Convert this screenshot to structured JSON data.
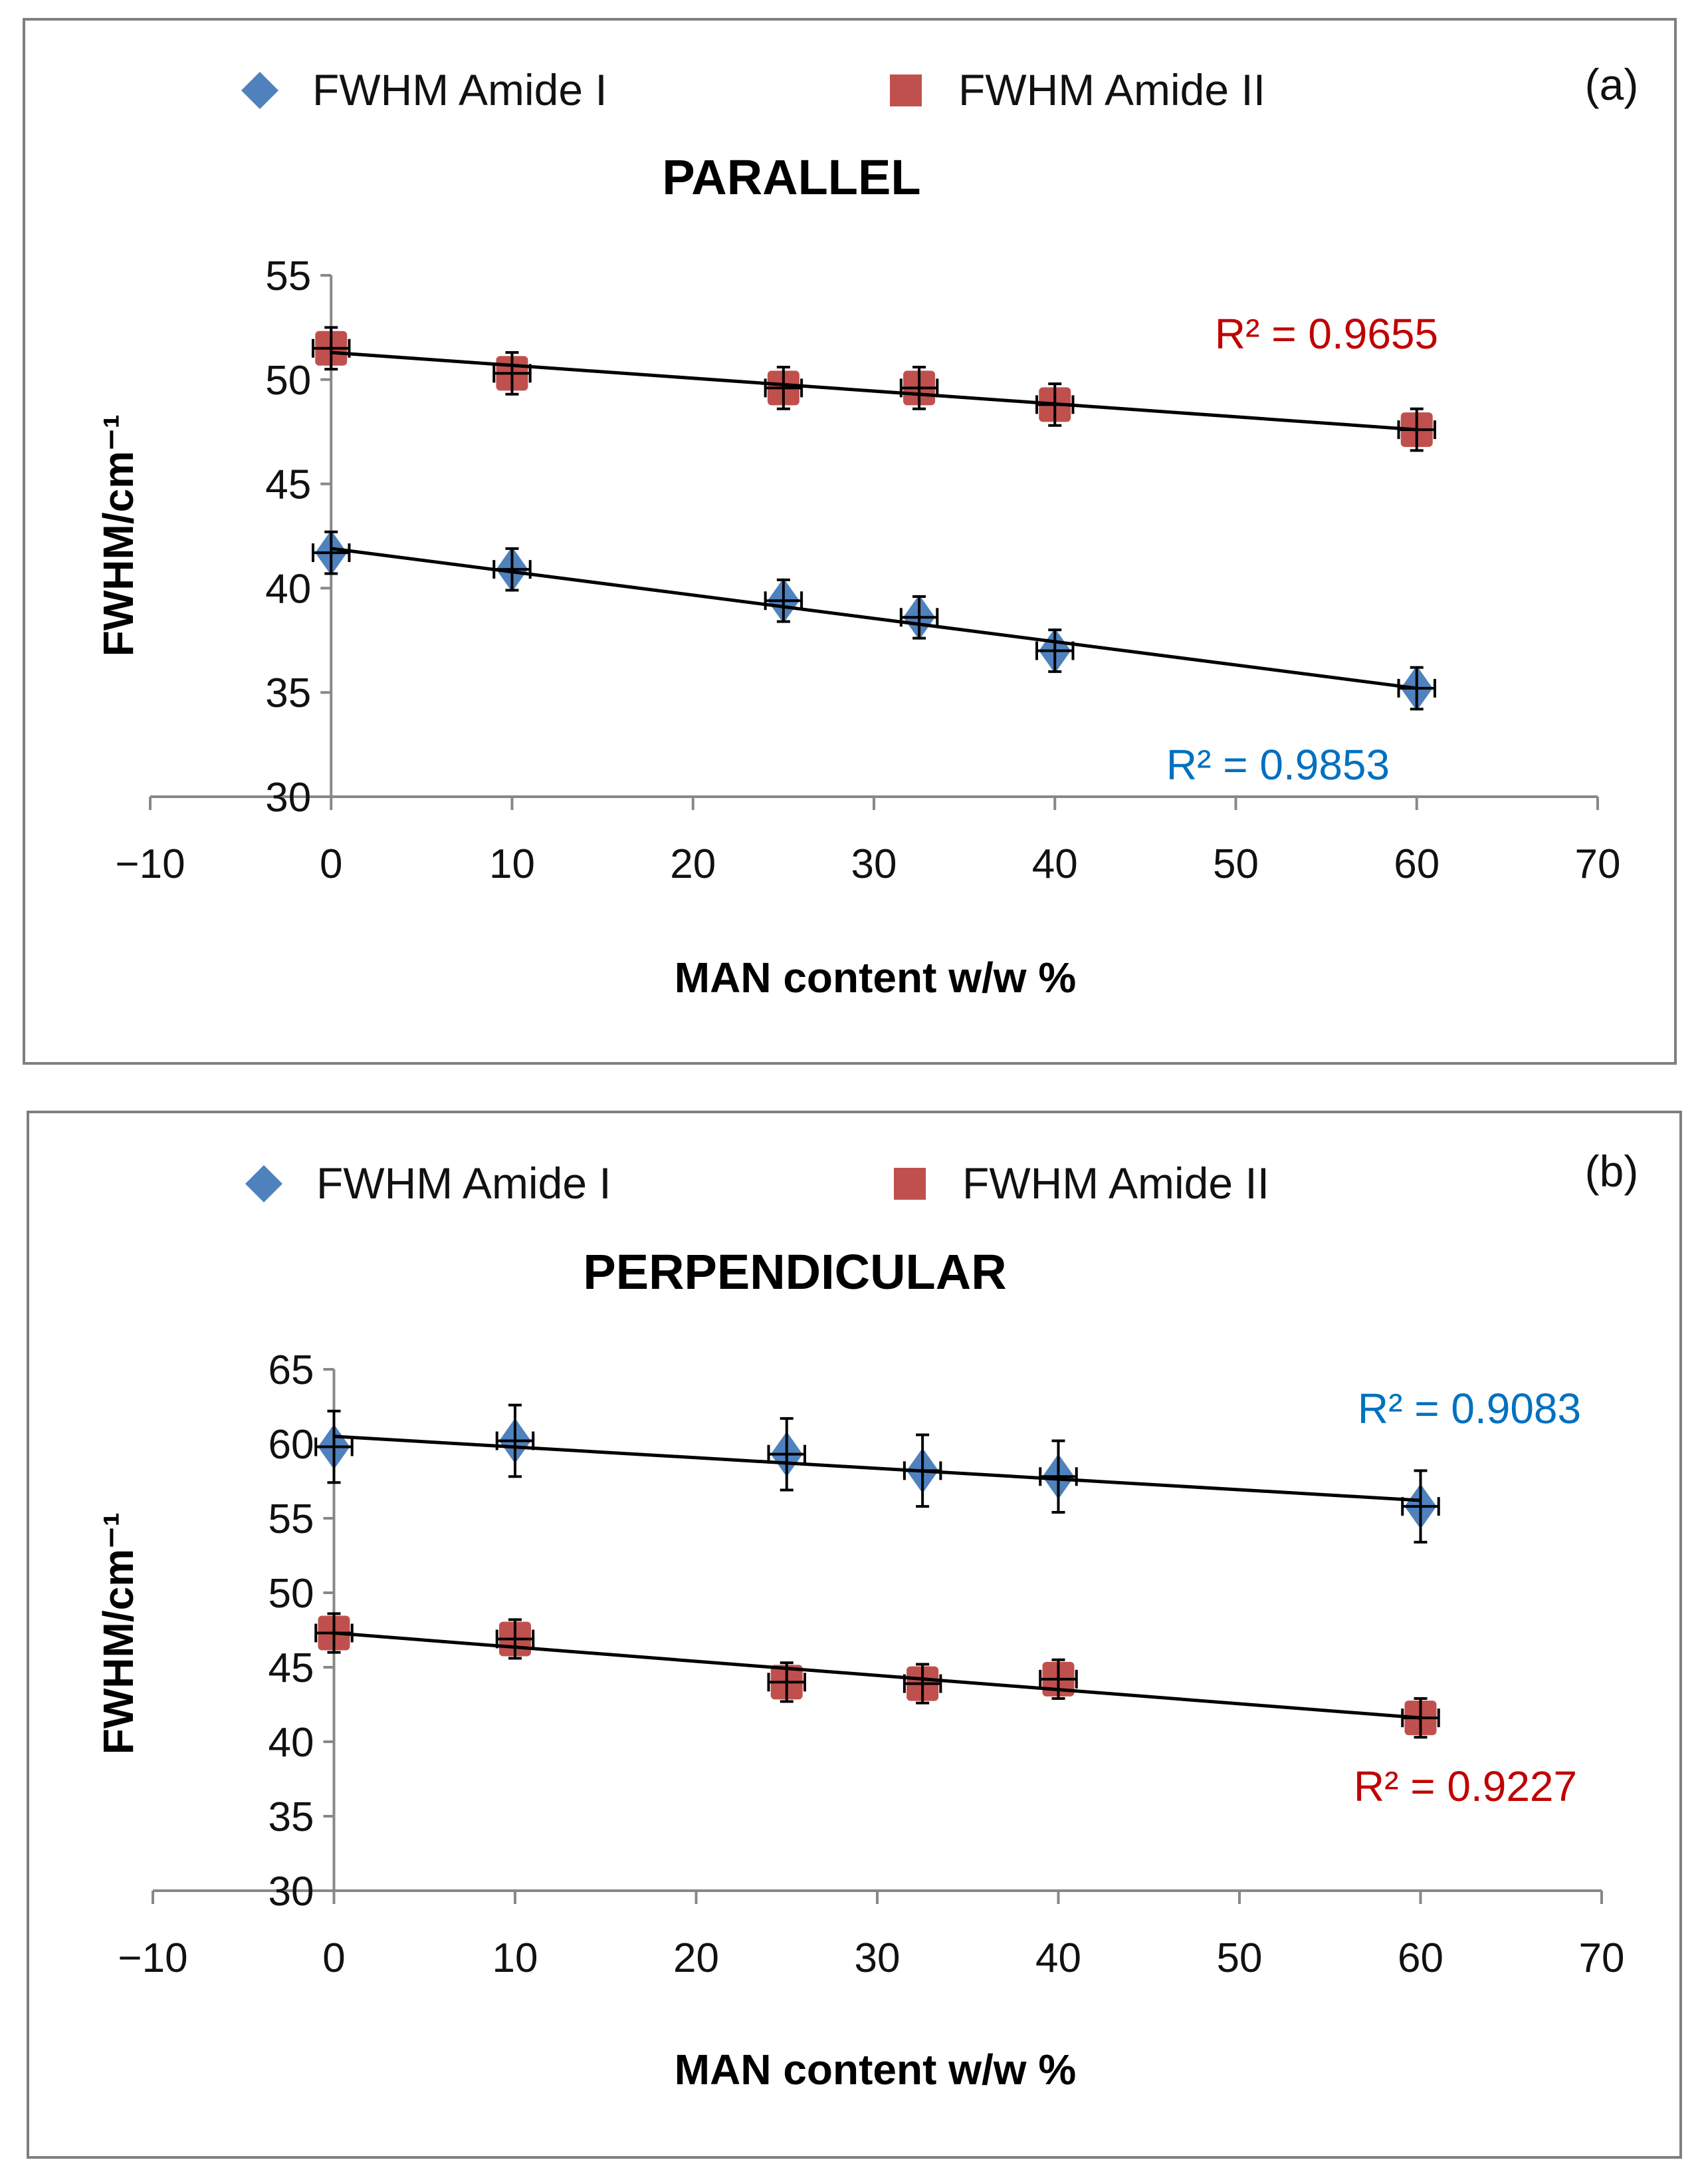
{
  "colors": {
    "amide1": "#4f81bd",
    "amide2": "#c0504d",
    "r2_blue": "#0070c0",
    "r2_red": "#c00000"
  },
  "chart_data": [
    {
      "type": "scatter",
      "panel": "(a)",
      "title": "PARALLEL",
      "xlabel": "MAN content w/w %",
      "ylabel": "FWHM/cm⁻¹",
      "xlim": [
        -10,
        70
      ],
      "ylim": [
        30,
        55
      ],
      "xticks": [
        -10,
        0,
        10,
        20,
        30,
        40,
        50,
        60,
        70
      ],
      "yticks": [
        30,
        35,
        40,
        45,
        50,
        55
      ],
      "legend": [
        "FWHM Amide I",
        "FWHM Amide II"
      ],
      "series": [
        {
          "name": "FWHM Amide I",
          "marker": "diamond",
          "x": [
            0,
            10,
            25,
            32.5,
            40,
            60
          ],
          "y": [
            41.7,
            40.9,
            39.4,
            38.6,
            37.0,
            35.2
          ],
          "yerr": 1.0,
          "xerr": 1.0,
          "trend": [
            41.9,
            35.2
          ],
          "r2": "R² = 0.9853"
        },
        {
          "name": "FWHM Amide II",
          "marker": "square",
          "x": [
            0,
            10,
            25,
            32.5,
            40,
            60
          ],
          "y": [
            51.5,
            50.3,
            49.6,
            49.6,
            48.8,
            47.6
          ],
          "yerr": 1.0,
          "xerr": 1.0,
          "trend": [
            51.3,
            47.6
          ],
          "r2": "R² = 0.9655"
        }
      ]
    },
    {
      "type": "scatter",
      "panel": "(b)",
      "title": "PERPENDICULAR",
      "xlabel": "MAN content w/w %",
      "ylabel": "FWHM/cm⁻¹",
      "xlim": [
        -10,
        70
      ],
      "ylim": [
        30,
        65
      ],
      "xticks": [
        -10,
        0,
        10,
        20,
        30,
        40,
        50,
        60,
        70
      ],
      "yticks": [
        30,
        35,
        40,
        45,
        50,
        55,
        60,
        65
      ],
      "legend": [
        "FWHM Amide I",
        "FWHM Amide II"
      ],
      "series": [
        {
          "name": "FWHM Amide I",
          "marker": "diamond",
          "x": [
            0,
            10,
            25,
            32.5,
            40,
            60
          ],
          "y": [
            59.8,
            60.2,
            59.3,
            58.2,
            57.8,
            55.8
          ],
          "yerr": 2.4,
          "xerr": 1.0,
          "trend": [
            60.5,
            56.2
          ],
          "r2": "R² = 0.9083"
        },
        {
          "name": "FWHM Amide II",
          "marker": "square",
          "x": [
            0,
            10,
            25,
            32.5,
            40,
            60
          ],
          "y": [
            47.3,
            46.9,
            44.0,
            43.9,
            44.2,
            41.6
          ],
          "yerr": 1.3,
          "xerr": 1.0,
          "trend": [
            47.3,
            41.6
          ],
          "r2": "R² = 0.9227"
        }
      ]
    }
  ]
}
